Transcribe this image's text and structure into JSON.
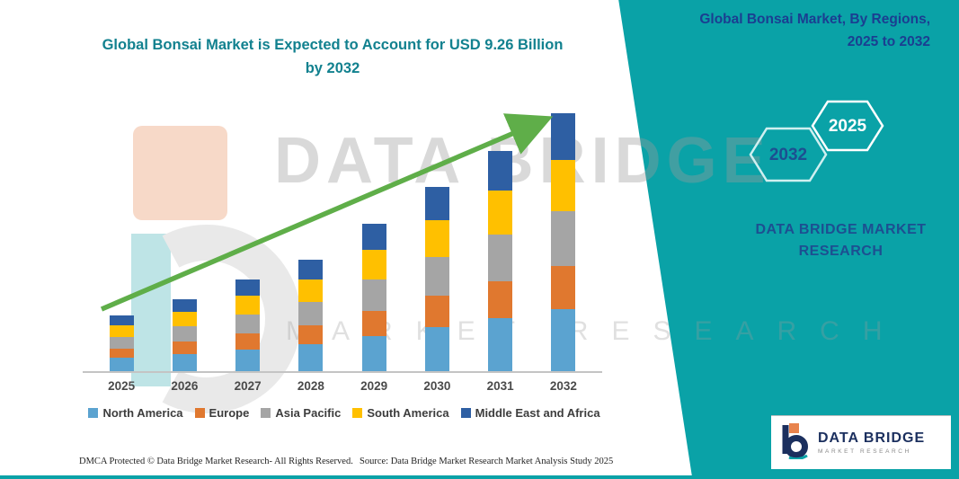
{
  "header": {
    "title_line1": "Global Bonsai Market is Expected to Account for USD 9.26 Billion",
    "title_line2": "by 2032"
  },
  "side_panel": {
    "title_line1": "Global Bonsai Market, By Regions,",
    "title_line2": "2025 to 2032",
    "hexagons": [
      "2032",
      "2025"
    ],
    "brand_line1": "DATA BRIDGE MARKET",
    "brand_line2": "RESEARCH"
  },
  "watermark": {
    "line1": "DATA BRIDGE",
    "line2": "MARKET RESEARCH"
  },
  "footer": {
    "left": "DMCA Protected © Data Bridge Market Research-  All Rights Reserved.",
    "source": "Source: Data Bridge Market Research  Market Analysis Study 2025"
  },
  "logo": {
    "name": "DATA BRIDGE",
    "subtitle": "MARKET RESEARCH"
  },
  "colors": {
    "teal": "#0AA2A7",
    "title_teal": "#12818F",
    "dark_blue": "#1D4F91",
    "arrow_green": "#5FAE49"
  },
  "chart_data": {
    "type": "bar",
    "stacked": true,
    "title": "Global Bonsai Market, By Regions, 2025 to 2032",
    "unit": "USD Billion",
    "categories": [
      "2025",
      "2026",
      "2027",
      "2028",
      "2029",
      "2030",
      "2031",
      "2032"
    ],
    "series": [
      {
        "name": "North America",
        "color": "#5BA3D0",
        "values": [
          0.48,
          0.62,
          0.79,
          0.96,
          1.27,
          1.58,
          1.9,
          2.22
        ]
      },
      {
        "name": "Europe",
        "color": "#E0782F",
        "values": [
          0.34,
          0.44,
          0.56,
          0.68,
          0.9,
          1.12,
          1.34,
          1.57
        ]
      },
      {
        "name": "Asia Pacific",
        "color": "#A5A5A5",
        "values": [
          0.42,
          0.55,
          0.69,
          0.84,
          1.11,
          1.39,
          1.66,
          1.94
        ]
      },
      {
        "name": "South America",
        "color": "#FFC000",
        "values": [
          0.4,
          0.52,
          0.66,
          0.8,
          1.06,
          1.32,
          1.58,
          1.85
        ]
      },
      {
        "name": "Middle East and Africa",
        "color": "#2E5FA3",
        "values": [
          0.36,
          0.47,
          0.6,
          0.72,
          0.96,
          1.19,
          1.42,
          1.68
        ]
      }
    ],
    "totals": [
      2.0,
      2.6,
      3.3,
      4.0,
      5.3,
      6.6,
      7.9,
      9.26
    ],
    "ylim": [
      0,
      9.26
    ],
    "grid": false,
    "legend_position": "bottom",
    "annotation": "upward trend arrow"
  }
}
